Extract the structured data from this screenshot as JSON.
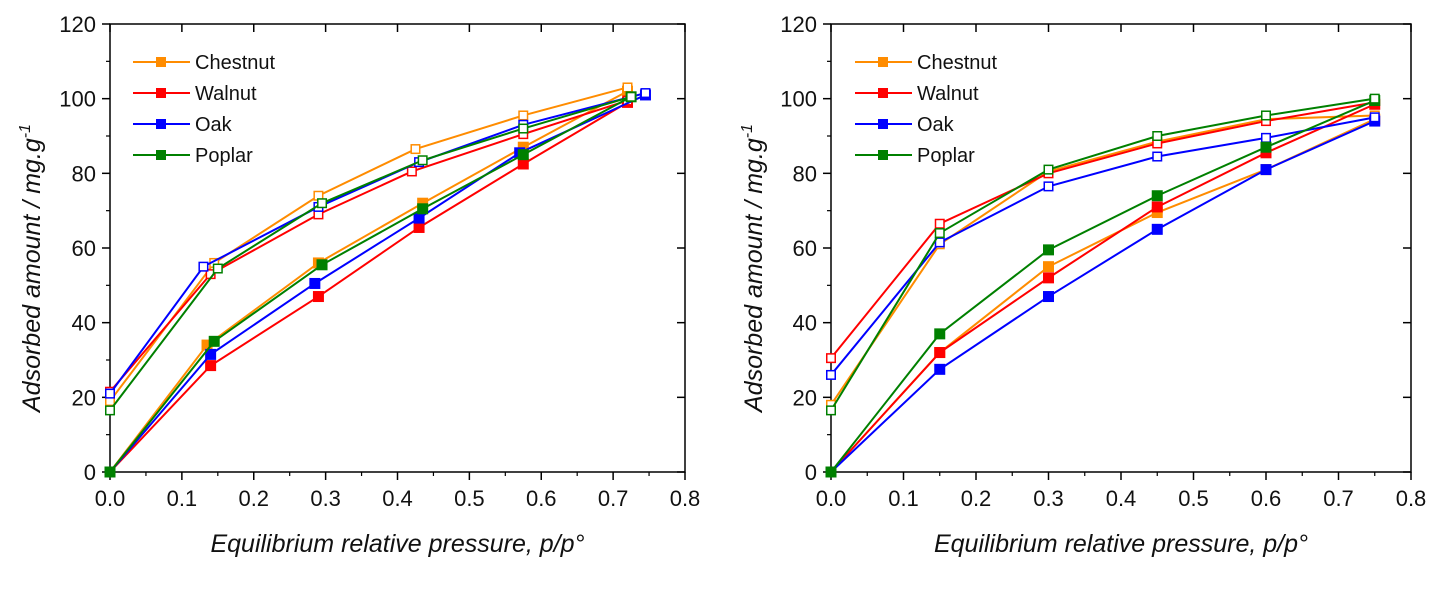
{
  "chart_data": [
    {
      "type": "line",
      "xlabel": "Equilibrium relative pressure, p/p°",
      "ylabel_main": "Adsorbed amount / mg.g",
      "ylabel_sup": "-1",
      "xlim": [
        0,
        0.8
      ],
      "ylim": [
        0,
        120
      ],
      "xticks": [
        0.0,
        0.1,
        0.2,
        0.3,
        0.4,
        0.5,
        0.6,
        0.7,
        0.8
      ],
      "xtick_labels": [
        "0.0",
        "0.1",
        "0.2",
        "0.3",
        "0.4",
        "0.5",
        "0.6",
        "0.7",
        "0.8"
      ],
      "yticks": [
        0,
        20,
        40,
        60,
        80,
        100,
        120
      ],
      "ytick_labels": [
        "0",
        "20",
        "40",
        "60",
        "80",
        "100",
        "120"
      ],
      "grid": false,
      "legend_position": "top-left",
      "series": [
        {
          "name": "Chestnut",
          "color": "#ff8c00",
          "adsorption": {
            "x": [
              0.0,
              0.135,
              0.29,
              0.435,
              0.575,
              0.72
            ],
            "y": [
              0,
              34,
              56,
              72,
              87,
              102
            ]
          },
          "desorption": {
            "x": [
              0.72,
              0.575,
              0.425,
              0.29,
              0.145,
              0.0
            ],
            "y": [
              103,
              95.5,
              86.5,
              74,
              56,
              19
            ]
          }
        },
        {
          "name": "Walnut",
          "color": "#ff0000",
          "adsorption": {
            "x": [
              0.0,
              0.14,
              0.29,
              0.43,
              0.575,
              0.72
            ],
            "y": [
              0,
              28.5,
              47,
              65.5,
              82.5,
              99
            ]
          },
          "desorption": {
            "x": [
              0.72,
              0.575,
              0.42,
              0.29,
              0.14,
              0.0
            ],
            "y": [
              99.5,
              90.5,
              80.5,
              69,
              53,
              21.5
            ]
          }
        },
        {
          "name": "Oak",
          "color": "#0000ff",
          "adsorption": {
            "x": [
              0.0,
              0.14,
              0.285,
              0.43,
              0.57,
              0.745
            ],
            "y": [
              0,
              31.5,
              50.5,
              68,
              85.5,
              101
            ]
          },
          "desorption": {
            "x": [
              0.745,
              0.575,
              0.43,
              0.29,
              0.13,
              0.0
            ],
            "y": [
              101.5,
              93,
              83,
              71,
              55,
              21
            ]
          }
        },
        {
          "name": "Poplar",
          "color": "#008000",
          "adsorption": {
            "x": [
              0.0,
              0.145,
              0.295,
              0.435,
              0.575,
              0.725
            ],
            "y": [
              0,
              35,
              55.5,
              70.5,
              85,
              100.5
            ]
          },
          "desorption": {
            "x": [
              0.725,
              0.575,
              0.435,
              0.295,
              0.15,
              0.0
            ],
            "y": [
              100.5,
              92,
              83.5,
              72,
              54.5,
              16.5
            ]
          }
        }
      ]
    },
    {
      "type": "line",
      "xlabel": "Equilibrium relative pressure, p/p°",
      "ylabel_main": "Adsorbed amount / mg.g",
      "ylabel_sup": "-1",
      "xlim": [
        0,
        0.8
      ],
      "ylim": [
        0,
        120
      ],
      "xticks": [
        0.0,
        0.1,
        0.2,
        0.3,
        0.4,
        0.5,
        0.6,
        0.7,
        0.8
      ],
      "xtick_labels": [
        "0.0",
        "0.1",
        "0.2",
        "0.3",
        "0.4",
        "0.5",
        "0.6",
        "0.7",
        "0.8"
      ],
      "yticks": [
        0,
        20,
        40,
        60,
        80,
        100,
        120
      ],
      "ytick_labels": [
        "0",
        "20",
        "40",
        "60",
        "80",
        "100",
        "120"
      ],
      "grid": false,
      "legend_position": "top-left",
      "series": [
        {
          "name": "Chestnut",
          "color": "#ff8c00",
          "adsorption": {
            "x": [
              0.0,
              0.15,
              0.3,
              0.45,
              0.6,
              0.75
            ],
            "y": [
              0,
              32,
              55,
              69.5,
              81,
              94.5
            ]
          },
          "desorption": {
            "x": [
              0.75,
              0.6,
              0.45,
              0.3,
              0.15,
              0.0
            ],
            "y": [
              95.5,
              94.5,
              88.5,
              80.5,
              61,
              18
            ]
          }
        },
        {
          "name": "Walnut",
          "color": "#ff0000",
          "adsorption": {
            "x": [
              0.0,
              0.15,
              0.3,
              0.45,
              0.6,
              0.75
            ],
            "y": [
              0,
              32,
              52,
              71,
              85.5,
              98.5
            ]
          },
          "desorption": {
            "x": [
              0.75,
              0.6,
              0.45,
              0.3,
              0.15,
              0.0
            ],
            "y": [
              99,
              94,
              88,
              80,
              66.5,
              30.5
            ]
          }
        },
        {
          "name": "Oak",
          "color": "#0000ff",
          "adsorption": {
            "x": [
              0.0,
              0.15,
              0.3,
              0.45,
              0.6,
              0.75
            ],
            "y": [
              0,
              27.5,
              47,
              65,
              81,
              94
            ]
          },
          "desorption": {
            "x": [
              0.75,
              0.6,
              0.45,
              0.3,
              0.15,
              0.0
            ],
            "y": [
              95,
              89.5,
              84.5,
              76.5,
              61.5,
              26
            ]
          }
        },
        {
          "name": "Poplar",
          "color": "#008000",
          "adsorption": {
            "x": [
              0.0,
              0.15,
              0.3,
              0.45,
              0.6,
              0.75
            ],
            "y": [
              0,
              37,
              59.5,
              74,
              87,
              99.5
            ]
          },
          "desorption": {
            "x": [
              0.75,
              0.6,
              0.45,
              0.3,
              0.15,
              0.0
            ],
            "y": [
              100,
              95.5,
              90,
              81,
              64,
              16.5
            ]
          }
        }
      ]
    }
  ]
}
